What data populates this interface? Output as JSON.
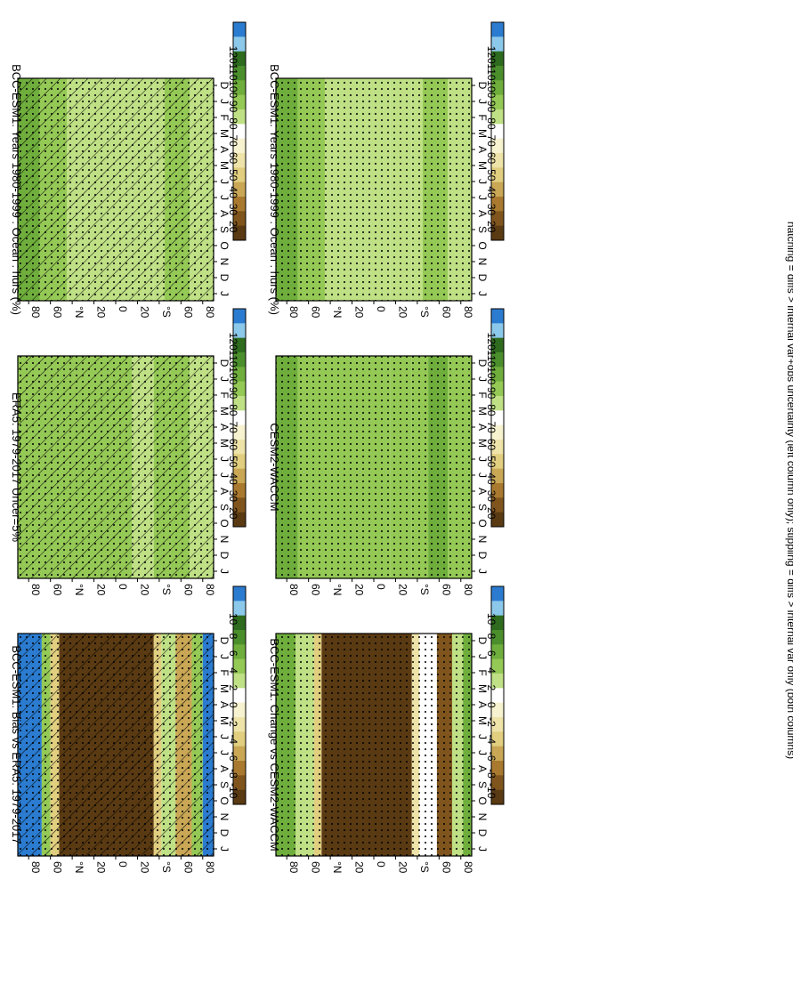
{
  "figure_caption": "hatching = diffs > internal var+obs uncertainty (left column only); stippling = diffs > internal var only (both columns)",
  "lat_tick_labels": [
    "80",
    "60",
    "°N",
    "20",
    "0",
    "20",
    "°S",
    "60",
    "80"
  ],
  "month_tick_labels": [
    "D",
    "J",
    "F",
    "M",
    "A",
    "M",
    "J",
    "J",
    "A",
    "S",
    "O",
    "N",
    "D",
    "J"
  ],
  "colorbars": {
    "abs": {
      "labels": [
        "120",
        "110",
        "100",
        "90",
        "80",
        "70",
        "60",
        "50",
        "40",
        "30",
        "20"
      ],
      "colors": [
        "#2b7cd0",
        "#8cc8ea",
        "#2e6b1e",
        "#4b8f2d",
        "#6fae3c",
        "#95c956",
        "#bfe085",
        "#ffffff",
        "#f7f2cf",
        "#eee3a8",
        "#e1ce7f",
        "#c9a755",
        "#a8792f",
        "#7f551d",
        "#5a3a12"
      ]
    },
    "diff": {
      "labels": [
        "10",
        "8",
        "6",
        "4",
        "2",
        "0",
        "-2",
        "-4",
        "-6",
        "-8",
        "-10"
      ],
      "colors": [
        "#2b7cd0",
        "#8cc8ea",
        "#2e6b1e",
        "#4b8f2d",
        "#6fae3c",
        "#95c956",
        "#bfe085",
        "#ffffff",
        "#f7f2cf",
        "#eee3a8",
        "#e1ce7f",
        "#c9a755",
        "#a8792f",
        "#7f551d",
        "#5a3a12"
      ]
    }
  },
  "chart_data": [
    {
      "type": "heatmap",
      "title": "BCC-ESM1: Years 1980-1999 : Ocean : hurs (%)",
      "x": "month (Dec–Jan)",
      "y": "latitude",
      "ylim": [
        -90,
        90
      ],
      "colorbar": "abs",
      "bands": [
        {
          "lat": [
            90,
            70
          ],
          "value": 95
        },
        {
          "lat": [
            70,
            45
          ],
          "value": 85
        },
        {
          "lat": [
            45,
            -15
          ],
          "value": 78
        },
        {
          "lat": [
            -15,
            -35
          ],
          "value": 76
        },
        {
          "lat": [
            -35,
            -45
          ],
          "value": 80
        },
        {
          "lat": [
            -45,
            -68
          ],
          "value": 87
        },
        {
          "lat": [
            -68,
            -90
          ],
          "value": 78
        }
      ],
      "hatching": true,
      "stippling": true
    },
    {
      "type": "heatmap",
      "title": "BCC-ESM1: Years 1980-1999 : Ocean : hurs (%)",
      "x": "month (Dec–Jan)",
      "y": "latitude",
      "ylim": [
        -90,
        90
      ],
      "colorbar": "abs",
      "bands": [
        {
          "lat": [
            90,
            70
          ],
          "value": 95
        },
        {
          "lat": [
            70,
            45
          ],
          "value": 85
        },
        {
          "lat": [
            45,
            -15
          ],
          "value": 78
        },
        {
          "lat": [
            -15,
            -35
          ],
          "value": 76
        },
        {
          "lat": [
            -35,
            -45
          ],
          "value": 80
        },
        {
          "lat": [
            -45,
            -68
          ],
          "value": 87
        },
        {
          "lat": [
            -68,
            -90
          ],
          "value": 78
        }
      ],
      "hatching": false,
      "stippling": true
    },
    {
      "type": "heatmap",
      "title": "ERA5: 1979-2017 Uncer=5%",
      "x": "month (Dec–Jan)",
      "y": "latitude",
      "ylim": [
        -90,
        90
      ],
      "colorbar": "abs",
      "bands": [
        {
          "lat": [
            90,
            70
          ],
          "value": 88
        },
        {
          "lat": [
            70,
            45
          ],
          "value": 85
        },
        {
          "lat": [
            45,
            -15
          ],
          "value": 82
        },
        {
          "lat": [
            -15,
            -35
          ],
          "value": 78
        },
        {
          "lat": [
            -35,
            -50
          ],
          "value": 82
        },
        {
          "lat": [
            -50,
            -68
          ],
          "value": 85
        },
        {
          "lat": [
            -68,
            -90
          ],
          "value": 78
        }
      ],
      "hatching": true,
      "stippling": true
    },
    {
      "type": "heatmap",
      "title": "CESM2-WACCM",
      "x": "month (Dec–Jan)",
      "y": "latitude",
      "ylim": [
        -90,
        90
      ],
      "colorbar": "abs",
      "bands": [
        {
          "lat": [
            90,
            70
          ],
          "value": 92
        },
        {
          "lat": [
            70,
            45
          ],
          "value": 88
        },
        {
          "lat": [
            45,
            -15
          ],
          "value": 84
        },
        {
          "lat": [
            -15,
            -35
          ],
          "value": 82
        },
        {
          "lat": [
            -35,
            -50
          ],
          "value": 85
        },
        {
          "lat": [
            -50,
            -68
          ],
          "value": 90
        },
        {
          "lat": [
            -68,
            -90
          ],
          "value": 82
        }
      ],
      "hatching": false,
      "stippling": true
    },
    {
      "type": "heatmap",
      "title": "BCC-ESM1: Bias vs ERA5: 1979-2017",
      "x": "month (Dec–Jan)",
      "y": "latitude",
      "ylim": [
        -90,
        90
      ],
      "colorbar": "diff",
      "bands": [
        {
          "lat": [
            90,
            68
          ],
          "value": 11
        },
        {
          "lat": [
            68,
            60
          ],
          "value": 3
        },
        {
          "lat": [
            60,
            52
          ],
          "value": -5
        },
        {
          "lat": [
            52,
            -35
          ],
          "value": -11
        },
        {
          "lat": [
            -35,
            -42
          ],
          "value": -4
        },
        {
          "lat": [
            -42,
            -55
          ],
          "value": 1
        },
        {
          "lat": [
            -55,
            -70
          ],
          "value": -6
        },
        {
          "lat": [
            -70,
            -80
          ],
          "value": 3
        },
        {
          "lat": [
            -80,
            -90
          ],
          "value": 11
        }
      ],
      "hatching": true,
      "stippling": true
    },
    {
      "type": "heatmap",
      "title": "BCC-ESM1: Change vs CESM2-WACCM",
      "x": "month (Dec–Jan)",
      "y": "latitude",
      "ylim": [
        -90,
        90
      ],
      "colorbar": "diff",
      "bands": [
        {
          "lat": [
            90,
            72
          ],
          "value": 4
        },
        {
          "lat": [
            72,
            55
          ],
          "value": 2
        },
        {
          "lat": [
            55,
            48
          ],
          "value": -5
        },
        {
          "lat": [
            48,
            -35
          ],
          "value": -11
        },
        {
          "lat": [
            -35,
            -42
          ],
          "value": -3
        },
        {
          "lat": [
            -42,
            -58
          ],
          "value": 0
        },
        {
          "lat": [
            -58,
            -72
          ],
          "value": -9
        },
        {
          "lat": [
            -72,
            -82
          ],
          "value": 2
        },
        {
          "lat": [
            -82,
            -90
          ],
          "value": 4
        }
      ],
      "hatching": false,
      "stippling": true
    }
  ]
}
